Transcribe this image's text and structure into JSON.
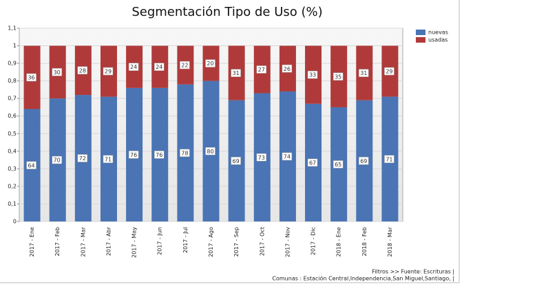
{
  "chart_data": {
    "type": "bar",
    "stacked": true,
    "title": "Segmentación Tipo de Uso (%)",
    "categories": [
      "2017 - Ene",
      "2017 - Feb",
      "2017 - Mar",
      "2017 - Abr",
      "2017 - May",
      "2017 - Jun",
      "2017 - Jul",
      "2017 - Ago",
      "2017 - Sep",
      "2017 - Oct",
      "2017 - Nov",
      "2017 - Dic",
      "2018 - Ene",
      "2018 - Feb",
      "2018 - Mar"
    ],
    "series": [
      {
        "name": "nuevas",
        "color": "#4a74b4",
        "values": [
          0.64,
          0.7,
          0.72,
          0.71,
          0.76,
          0.76,
          0.78,
          0.8,
          0.69,
          0.73,
          0.74,
          0.67,
          0.65,
          0.69,
          0.71
        ],
        "value_labels": [
          "64",
          "70",
          "72",
          "71",
          "76",
          "76",
          "78",
          "80",
          "69",
          "73",
          "74",
          "67",
          "65",
          "69",
          "71"
        ]
      },
      {
        "name": "usadas",
        "color": "#b03a3a",
        "values": [
          0.36,
          0.3,
          0.28,
          0.29,
          0.24,
          0.24,
          0.22,
          0.2,
          0.31,
          0.27,
          0.26,
          0.33,
          0.35,
          0.31,
          0.29
        ],
        "value_labels": [
          "36",
          "30",
          "28",
          "29",
          "24",
          "24",
          "22",
          "20",
          "31",
          "27",
          "26",
          "33",
          "35",
          "31",
          "29"
        ]
      }
    ],
    "ylim": [
      0,
      1.1
    ],
    "yticks": [
      0,
      {
        "value": 0.1,
        "label": "0,1"
      },
      {
        "value": 0.2,
        "label": "0,2"
      },
      {
        "value": 0.3,
        "label": "0,3"
      },
      {
        "value": 0.4,
        "label": "0,4"
      },
      {
        "value": 0.5,
        "label": "0,5"
      },
      {
        "value": 0.6,
        "label": "0,6"
      },
      {
        "value": 0.7,
        "label": "0,7"
      },
      {
        "value": 0.8,
        "label": "0,8"
      },
      {
        "value": 0.9,
        "label": "0,9"
      },
      1,
      {
        "value": 1.1,
        "label": "1,1"
      }
    ],
    "grid": true,
    "legend": "right",
    "footnotes": [
      "Filtros >> Fuente: Escrituras |",
      "Comunas : Estación Central,Independencia,San Miguel,Santiago, |"
    ]
  }
}
